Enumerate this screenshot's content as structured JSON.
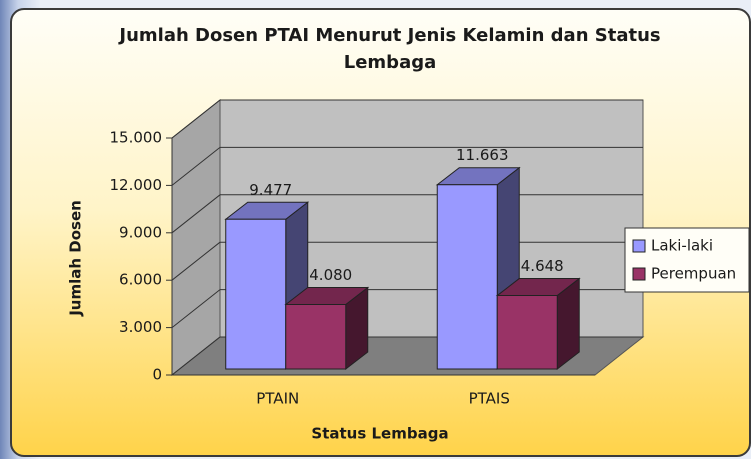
{
  "chart_data": {
    "type": "bar3d",
    "title": "Jumlah Dosen PTAI Menurut Jenis Kelamin dan Status Lembaga",
    "x_label": "Status Lembaga",
    "y_label": "Jumlah Dosen",
    "categories": [
      "PTAIN",
      "PTAIS"
    ],
    "series": [
      {
        "name": "Laki-laki",
        "color": "#9999ff",
        "values": [
          9477,
          11663
        ],
        "value_labels": [
          "9.477",
          "11.663"
        ]
      },
      {
        "name": "Perempuan",
        "color": "#993366",
        "values": [
          4080,
          4648
        ],
        "value_labels": [
          "4.080",
          "4.648"
        ]
      }
    ],
    "ylim": [
      0,
      15000
    ],
    "yticks": [
      0,
      {
        "value": 3000,
        "label": "3.000"
      },
      {
        "value": 6000,
        "label": "6.000"
      },
      {
        "value": 9000,
        "label": "9.000"
      },
      {
        "value": 12000,
        "label": "12.000"
      },
      {
        "value": 15000,
        "label": "15.000"
      }
    ],
    "grid": true,
    "legend": "right"
  }
}
